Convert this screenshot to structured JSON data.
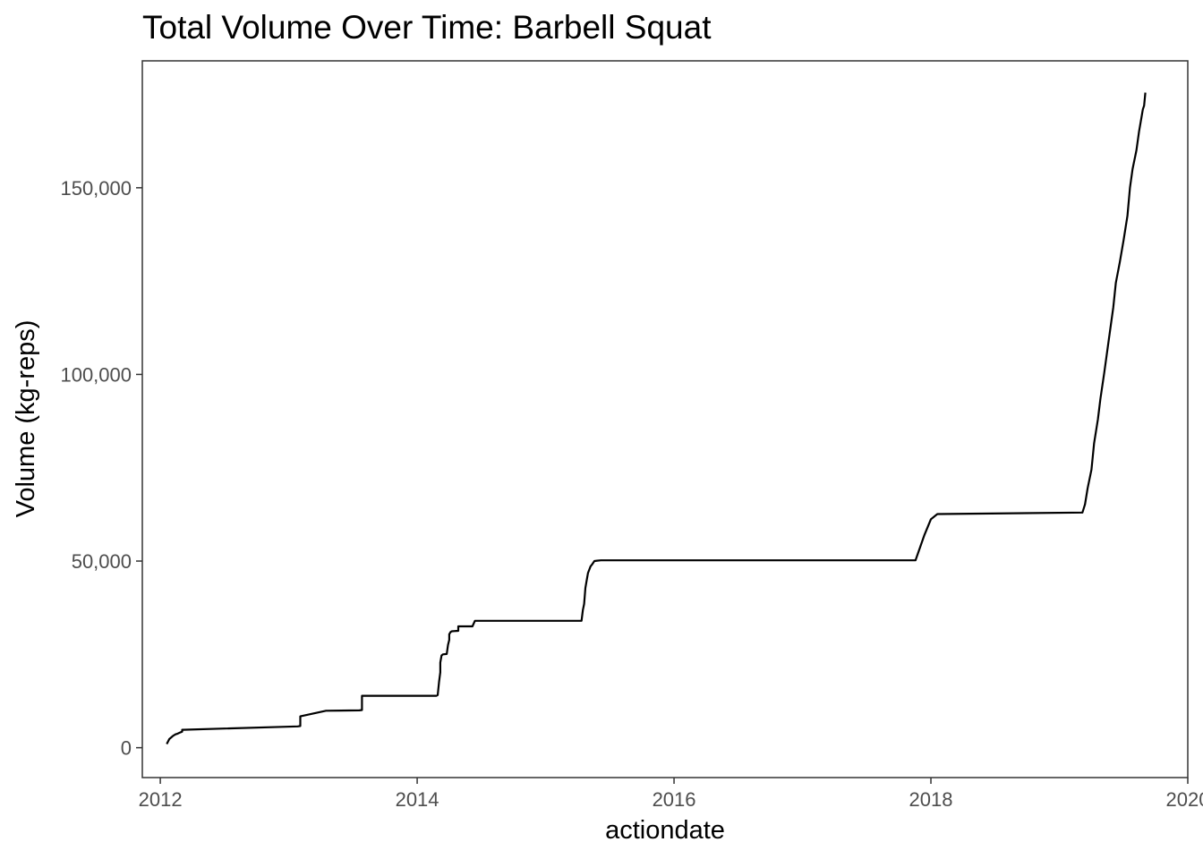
{
  "chart_data": {
    "type": "line",
    "title": "Total Volume Over Time: Barbell Squat",
    "xlabel": "actiondate",
    "ylabel": "Volume (kg-reps)",
    "xlim": [
      2011.86,
      2020.0
    ],
    "ylim": [
      -8000,
      184000
    ],
    "x_ticks": [
      2012,
      2014,
      2016,
      2018,
      2020
    ],
    "x_tick_labels": [
      "2012",
      "2014",
      "2016",
      "2018",
      "2020"
    ],
    "y_ticks": [
      0,
      50000,
      100000,
      150000
    ],
    "y_tick_labels": [
      "0",
      "50,000",
      "100,000",
      "150,000"
    ],
    "grid": false,
    "legend": "none",
    "series": [
      {
        "color": "#000000",
        "x": [
          2012.05,
          2012.07,
          2012.1,
          2012.12,
          2012.13,
          2012.15,
          2012.17,
          2012.17,
          2013.07,
          2013.09,
          2013.09,
          2013.29,
          2013.55,
          2013.57,
          2013.57,
          2014.15,
          2014.16,
          2014.17,
          2014.18,
          2014.18,
          2014.19,
          2014.2,
          2014.23,
          2014.24,
          2014.25,
          2014.25,
          2014.26,
          2014.27,
          2014.32,
          2014.32,
          2014.43,
          2014.45,
          2015.28,
          2015.29,
          2015.3,
          2015.31,
          2015.32,
          2015.33,
          2015.35,
          2015.36,
          2015.38,
          2015.4,
          2015.43,
          2017.88,
          2017.95,
          2018.0,
          2018.05,
          2019.18,
          2019.2,
          2019.22,
          2019.25,
          2019.27,
          2019.3,
          2019.32,
          2019.35,
          2019.38,
          2019.42,
          2019.44,
          2019.47,
          2019.5,
          2019.53,
          2019.55,
          2019.57,
          2019.6,
          2019.62,
          2019.65,
          2019.66,
          2019.67
        ],
        "values": [
          1000,
          2300,
          3200,
          3600,
          3700,
          4000,
          4300,
          4800,
          5700,
          5800,
          8400,
          9900,
          10000,
          10100,
          13900,
          13900,
          14100,
          17600,
          20200,
          22800,
          24700,
          25000,
          25100,
          27500,
          28900,
          30400,
          31000,
          31200,
          31300,
          32500,
          32500,
          34000,
          34000,
          36900,
          38500,
          42800,
          44900,
          46800,
          48600,
          49000,
          50000,
          50100,
          50200,
          50200,
          57000,
          61200,
          62600,
          63000,
          65200,
          69500,
          74500,
          81500,
          88000,
          93500,
          100500,
          108000,
          118000,
          124500,
          130000,
          136000,
          142500,
          150000,
          155000,
          160000,
          165000,
          171000,
          172000,
          175500
        ]
      }
    ]
  }
}
